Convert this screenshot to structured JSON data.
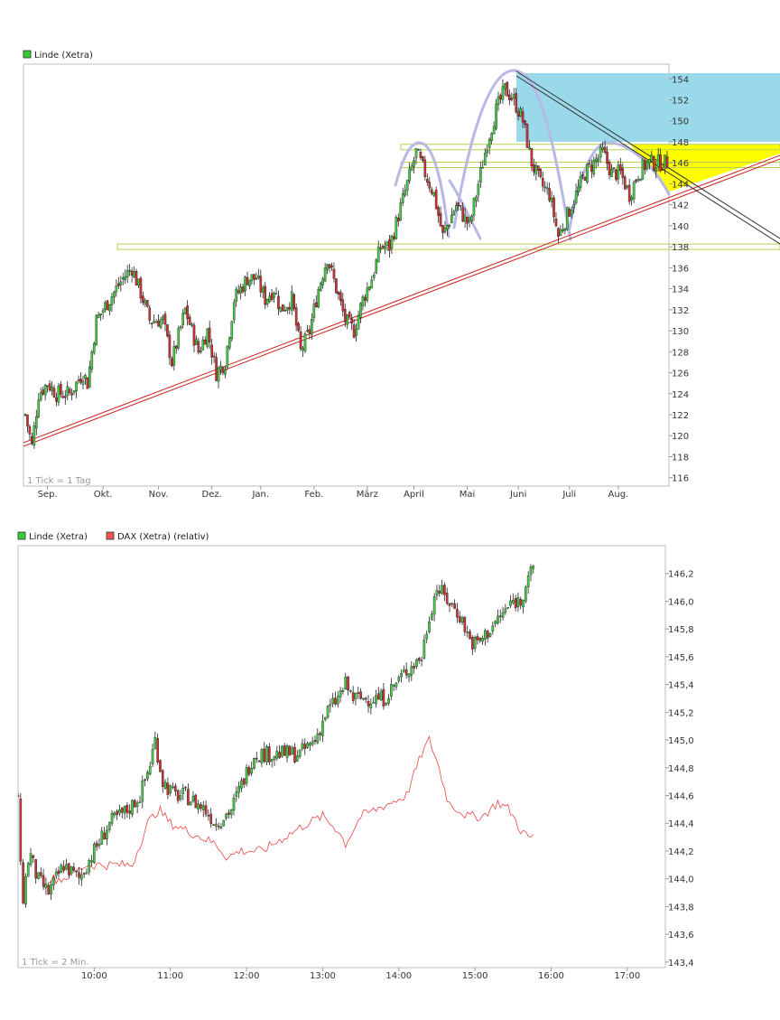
{
  "chart_data": [
    {
      "type": "candlestick",
      "legend": [
        {
          "name": "Linde (Xetra)",
          "color": "#33cc33"
        }
      ],
      "tick_note": "1 Tick = 1 Tag",
      "y_ticks": [
        116,
        118,
        120,
        122,
        124,
        126,
        128,
        130,
        132,
        134,
        136,
        138,
        140,
        142,
        144,
        146,
        148,
        150,
        152,
        154
      ],
      "ylim": [
        115.2,
        155.4
      ],
      "x_labels": [
        "Sep.",
        "Okt.",
        "Nov.",
        "Dez.",
        "Jan.",
        "Feb.",
        "März",
        "April",
        "Mai",
        "Juni",
        "Juli",
        "Aug."
      ],
      "x_label_days": [
        10,
        35,
        60,
        84,
        106,
        130,
        154,
        175,
        199,
        222,
        245,
        267
      ],
      "n_days": 290,
      "anchors": [
        [
          0,
          122
        ],
        [
          3,
          119
        ],
        [
          6,
          124
        ],
        [
          10,
          125
        ],
        [
          14,
          124
        ],
        [
          20,
          124
        ],
        [
          26,
          126
        ],
        [
          28,
          125
        ],
        [
          32,
          131
        ],
        [
          38,
          133
        ],
        [
          44,
          135
        ],
        [
          48,
          136
        ],
        [
          53,
          133
        ],
        [
          56,
          131
        ],
        [
          62,
          131
        ],
        [
          66,
          127
        ],
        [
          72,
          132
        ],
        [
          78,
          128
        ],
        [
          82,
          130
        ],
        [
          86,
          126
        ],
        [
          90,
          127
        ],
        [
          94,
          133
        ],
        [
          100,
          135
        ],
        [
          104,
          135
        ],
        [
          108,
          133
        ],
        [
          112,
          134
        ],
        [
          115,
          132
        ],
        [
          120,
          133
        ],
        [
          124,
          128
        ],
        [
          128,
          130
        ],
        [
          132,
          134
        ],
        [
          136,
          137
        ],
        [
          140,
          134
        ],
        [
          144,
          131
        ],
        [
          148,
          130
        ],
        [
          152,
          133
        ],
        [
          156,
          135
        ],
        [
          160,
          138
        ],
        [
          164,
          138
        ],
        [
          168,
          141
        ],
        [
          172,
          144
        ],
        [
          176,
          147
        ],
        [
          180,
          145
        ],
        [
          184,
          143
        ],
        [
          188,
          139
        ],
        [
          194,
          142
        ],
        [
          200,
          140
        ],
        [
          204,
          144
        ],
        [
          208,
          148
        ],
        [
          212,
          151
        ],
        [
          216,
          153
        ],
        [
          220,
          152
        ],
        [
          224,
          150
        ],
        [
          228,
          146
        ],
        [
          232,
          144
        ],
        [
          236,
          143
        ],
        [
          240,
          139
        ],
        [
          244,
          141
        ],
        [
          248,
          143
        ],
        [
          252,
          145
        ],
        [
          256,
          146
        ],
        [
          260,
          147
        ],
        [
          264,
          145
        ],
        [
          268,
          145
        ],
        [
          272,
          143
        ],
        [
          276,
          145
        ],
        [
          280,
          146
        ],
        [
          284,
          146
        ],
        [
          289,
          146
        ]
      ],
      "support_lines": [
        138,
        145.8,
        147.5
      ],
      "trend_line": [
        [
          0,
          119
        ],
        [
          289,
          142.6
        ]
      ]
    },
    {
      "type": "candlestick",
      "legend": [
        {
          "name": "Linde (Xetra)",
          "color": "#33cc33"
        },
        {
          "name": "DAX (Xetra) (relativ)",
          "color": "#ee5555"
        }
      ],
      "tick_note": "1 Tick = 2 Min.",
      "y_ticks": [
        "143,4",
        "143,6",
        "143,8",
        "144,0",
        "144,2",
        "144,4",
        "144,6",
        "144,8",
        "145,0",
        "145,2",
        "145,4",
        "145,6",
        "145,8",
        "146,0",
        "146,2"
      ],
      "y_tick_values": [
        143.4,
        143.6,
        143.8,
        144.0,
        144.2,
        144.4,
        144.6,
        144.8,
        145.0,
        145.2,
        145.4,
        145.6,
        145.8,
        146.0,
        146.2
      ],
      "ylim": [
        143.36,
        146.4
      ],
      "x_labels": [
        "10:00",
        "11:00",
        "12:00",
        "13:00",
        "14:00",
        "15:00",
        "16:00",
        "17:00"
      ],
      "x_label_hours": [
        10,
        11,
        12,
        13,
        14,
        15,
        16,
        17
      ],
      "time_range": [
        9.0,
        17.5
      ],
      "last_time": 15.77,
      "linde_anchors": [
        [
          9.0,
          144.6
        ],
        [
          9.05,
          143.8
        ],
        [
          9.15,
          144.2
        ],
        [
          9.25,
          144.0
        ],
        [
          9.4,
          143.9
        ],
        [
          9.6,
          144.1
        ],
        [
          9.8,
          144.0
        ],
        [
          10.0,
          144.2
        ],
        [
          10.2,
          144.4
        ],
        [
          10.45,
          144.5
        ],
        [
          10.6,
          144.6
        ],
        [
          10.72,
          144.8
        ],
        [
          10.8,
          145.0
        ],
        [
          10.9,
          144.7
        ],
        [
          11.05,
          144.6
        ],
        [
          11.2,
          144.6
        ],
        [
          11.45,
          144.5
        ],
        [
          11.6,
          144.4
        ],
        [
          11.8,
          144.5
        ],
        [
          11.95,
          144.7
        ],
        [
          12.1,
          144.9
        ],
        [
          12.3,
          144.9
        ],
        [
          12.5,
          144.9
        ],
        [
          12.7,
          144.9
        ],
        [
          12.9,
          145.0
        ],
        [
          13.05,
          145.2
        ],
        [
          13.2,
          145.3
        ],
        [
          13.3,
          145.4
        ],
        [
          13.4,
          145.3
        ],
        [
          13.6,
          145.3
        ],
        [
          13.8,
          145.3
        ],
        [
          13.95,
          145.4
        ],
        [
          14.1,
          145.5
        ],
        [
          14.3,
          145.6
        ],
        [
          14.4,
          145.9
        ],
        [
          14.5,
          146.1
        ],
        [
          14.65,
          146.0
        ],
        [
          14.8,
          145.9
        ],
        [
          14.95,
          145.7
        ],
        [
          15.05,
          145.7
        ],
        [
          15.2,
          145.8
        ],
        [
          15.35,
          145.9
        ],
        [
          15.5,
          146.0
        ],
        [
          15.6,
          146.0
        ],
        [
          15.7,
          146.2
        ],
        [
          15.77,
          146.2
        ]
      ],
      "dax_anchors": [
        [
          9.4,
          144.0
        ],
        [
          9.6,
          144.0
        ],
        [
          9.9,
          144.1
        ],
        [
          10.2,
          144.1
        ],
        [
          10.5,
          144.1
        ],
        [
          10.7,
          144.4
        ],
        [
          10.85,
          144.5
        ],
        [
          11.0,
          144.4
        ],
        [
          11.2,
          144.35
        ],
        [
          11.4,
          144.3
        ],
        [
          11.6,
          144.25
        ],
        [
          11.75,
          144.15
        ],
        [
          11.9,
          144.2
        ],
        [
          12.2,
          144.2
        ],
        [
          12.5,
          144.3
        ],
        [
          12.8,
          144.4
        ],
        [
          13.0,
          144.45
        ],
        [
          13.2,
          144.35
        ],
        [
          13.3,
          144.25
        ],
        [
          13.5,
          144.45
        ],
        [
          13.7,
          144.5
        ],
        [
          13.9,
          144.55
        ],
        [
          14.1,
          144.6
        ],
        [
          14.3,
          144.9
        ],
        [
          14.4,
          145.0
        ],
        [
          14.5,
          144.85
        ],
        [
          14.65,
          144.55
        ],
        [
          14.9,
          144.45
        ],
        [
          15.1,
          144.45
        ],
        [
          15.3,
          144.55
        ],
        [
          15.45,
          144.5
        ],
        [
          15.6,
          144.35
        ],
        [
          15.7,
          144.3
        ],
        [
          15.77,
          144.3
        ]
      ]
    }
  ]
}
